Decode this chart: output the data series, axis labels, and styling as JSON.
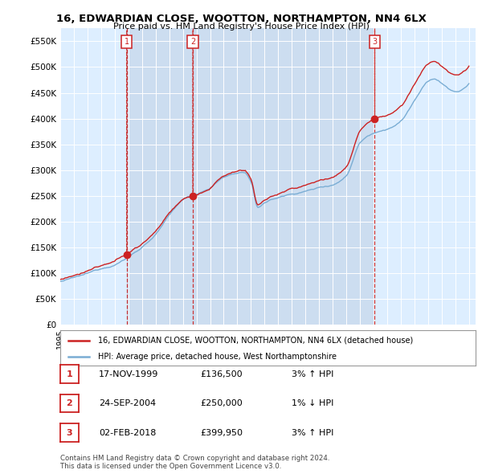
{
  "title": "16, EDWARDIAN CLOSE, WOOTTON, NORTHAMPTON, NN4 6LX",
  "subtitle": "Price paid vs. HM Land Registry's House Price Index (HPI)",
  "ylim": [
    0,
    575000
  ],
  "yticks": [
    0,
    50000,
    100000,
    150000,
    200000,
    250000,
    300000,
    350000,
    400000,
    450000,
    500000,
    550000
  ],
  "sale_times": [
    1999.876,
    2004.729,
    2018.087
  ],
  "sale_prices": [
    136500,
    250000,
    399950
  ],
  "sale_labels": [
    "1",
    "2",
    "3"
  ],
  "xlim": [
    1995,
    2025.5
  ],
  "legend_line1": "16, EDWARDIAN CLOSE, WOOTTON, NORTHAMPTON, NN4 6LX (detached house)",
  "legend_line2": "HPI: Average price, detached house, West Northamptonshire",
  "table_rows": [
    {
      "num": "1",
      "date": "17-NOV-1999",
      "price": "£136,500",
      "hpi": "3% ↑ HPI"
    },
    {
      "num": "2",
      "date": "24-SEP-2004",
      "price": "£250,000",
      "hpi": "1% ↓ HPI"
    },
    {
      "num": "3",
      "date": "02-FEB-2018",
      "price": "£399,950",
      "hpi": "3% ↑ HPI"
    }
  ],
  "footer": "Contains HM Land Registry data © Crown copyright and database right 2024.\nThis data is licensed under the Open Government Licence v3.0.",
  "hpi_color": "#7aadd4",
  "sale_line_color": "#cc2222",
  "shade_color": "#ccddf0",
  "plot_bg": "#ddeeff",
  "grid_color": "#ffffff",
  "dot_color": "#cc2222",
  "dashed_color": "#cc3333",
  "box_label_color": "#cc2222"
}
